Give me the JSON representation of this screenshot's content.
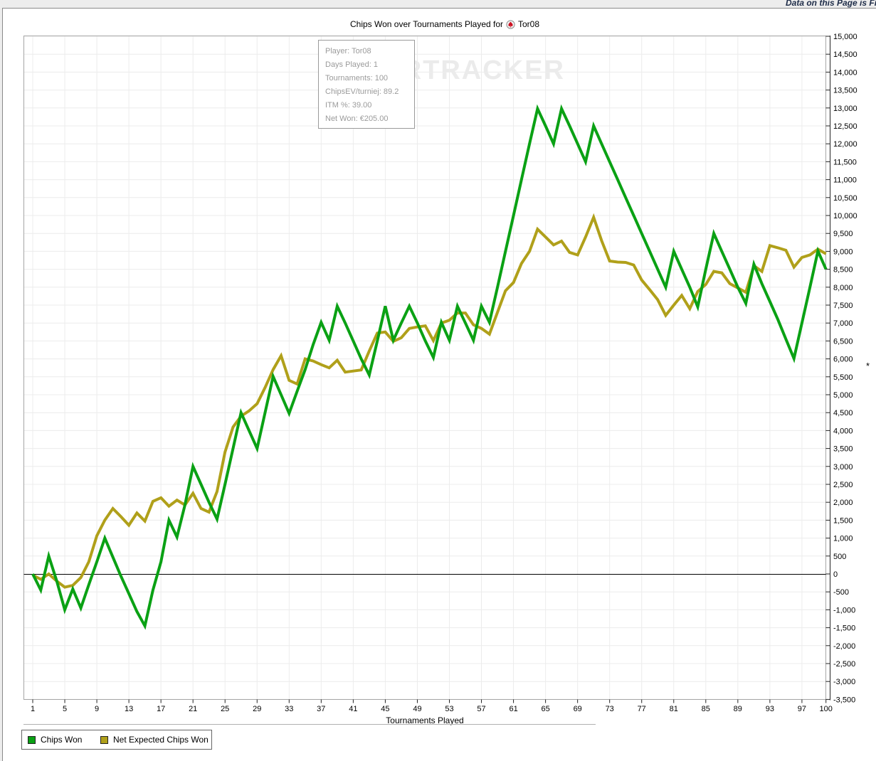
{
  "window": {
    "filtered_notice": "Data on this Page is Filtered"
  },
  "title": {
    "prefix": "Chips Won over Tournaments Played for",
    "player": "Tor08",
    "site_icon": "pokerstars-player-icon"
  },
  "watermark": "POKERTRACKER",
  "tooltip": {
    "lines": [
      "Player: Tor08",
      "Days Played: 1",
      "Tournaments: 100",
      "ChipsEV/turniej: 89.2",
      "ITM %: 39.00",
      "Net Won: €205.00"
    ]
  },
  "axes": {
    "x_label": "Tournaments Played",
    "y_symbol": "*"
  },
  "legend": {
    "items": [
      {
        "label": "Chips Won",
        "color": "#0aa114"
      },
      {
        "label": "Net Expected Chips Won",
        "color": "#b0a01a"
      }
    ]
  },
  "colors": {
    "green_line": "#0aa114",
    "olive_line": "#b0a01a",
    "grid": "#ececec",
    "plot_border": "#a6a6a6",
    "zero_line": "#000000",
    "axis": "#222222"
  },
  "chart_data": {
    "type": "line",
    "title": "Chips Won over Tournaments Played for Tor08",
    "xlabel": "Tournaments Played",
    "ylabel": "*",
    "xlim": [
      1,
      100
    ],
    "ylim": [
      -3500,
      15000
    ],
    "y_tick_step": 500,
    "grid": true,
    "legend_position": "bottom-left",
    "x_ticks": [
      1,
      5,
      9,
      13,
      17,
      21,
      25,
      29,
      33,
      37,
      41,
      45,
      49,
      53,
      57,
      61,
      65,
      69,
      73,
      77,
      81,
      85,
      89,
      93,
      97,
      100
    ],
    "x": [
      1,
      2,
      3,
      4,
      5,
      6,
      7,
      8,
      9,
      10,
      11,
      12,
      13,
      14,
      15,
      16,
      17,
      18,
      19,
      20,
      21,
      22,
      23,
      24,
      25,
      26,
      27,
      28,
      29,
      30,
      31,
      32,
      33,
      34,
      35,
      36,
      37,
      38,
      39,
      40,
      41,
      42,
      43,
      44,
      45,
      46,
      47,
      48,
      49,
      50,
      51,
      52,
      53,
      54,
      55,
      56,
      57,
      58,
      59,
      60,
      61,
      62,
      63,
      64,
      65,
      66,
      67,
      68,
      69,
      70,
      71,
      72,
      73,
      74,
      75,
      76,
      77,
      78,
      79,
      80,
      81,
      82,
      83,
      84,
      85,
      86,
      87,
      88,
      89,
      90,
      91,
      92,
      93,
      94,
      95,
      96,
      97,
      98,
      99,
      100
    ],
    "series": [
      {
        "name": "Chips Won",
        "color": "#0aa114",
        "values": [
          0,
          -450,
          500,
          -200,
          -1000,
          -420,
          -950,
          -300,
          340,
          1000,
          470,
          -60,
          -550,
          -1050,
          -1450,
          -450,
          340,
          1500,
          1030,
          1925,
          3000,
          2500,
          2000,
          1530,
          2500,
          3500,
          4500,
          4000,
          3500,
          4500,
          5510,
          5000,
          4480,
          5100,
          5700,
          6400,
          7020,
          6520,
          7470,
          7000,
          6500,
          6000,
          5550,
          6500,
          7470,
          6520,
          7000,
          7470,
          7000,
          6500,
          6040,
          7020,
          6520,
          7470,
          7000,
          6520,
          7470,
          7020,
          8000,
          9000,
          10000,
          11000,
          12000,
          12980,
          12500,
          12000,
          12980,
          12500,
          12000,
          11500,
          12500,
          12000,
          11500,
          11000,
          10500,
          10000,
          9500,
          9000,
          8500,
          8000,
          9000,
          8500,
          8000,
          7450,
          8500,
          9500,
          9000,
          8500,
          8000,
          7550,
          8640,
          8100,
          7600,
          7100,
          6550,
          6010,
          7000,
          8000,
          9010,
          8500
        ]
      },
      {
        "name": "Net Expected Chips Won",
        "color": "#b0a01a",
        "values": [
          -30,
          -150,
          0,
          -200,
          -370,
          -320,
          -100,
          340,
          1065,
          1500,
          1825,
          1600,
          1360,
          1700,
          1475,
          2025,
          2125,
          1890,
          2060,
          1925,
          2250,
          1825,
          1725,
          2300,
          3400,
          4100,
          4400,
          4550,
          4750,
          5200,
          5700,
          6090,
          5400,
          5300,
          6000,
          5940,
          5840,
          5750,
          5960,
          5630,
          5660,
          5690,
          6220,
          6720,
          6750,
          6490,
          6590,
          6850,
          6890,
          6920,
          6510,
          7000,
          7080,
          7280,
          7280,
          6950,
          6850,
          6690,
          7300,
          7900,
          8130,
          8660,
          9000,
          9620,
          9400,
          9180,
          9285,
          8970,
          8900,
          9400,
          9950,
          9300,
          8730,
          8700,
          8690,
          8620,
          8200,
          7930,
          7650,
          7215,
          7500,
          7770,
          7400,
          7880,
          8075,
          8440,
          8400,
          8100,
          7980,
          7860,
          8600,
          8440,
          9160,
          9100,
          9030,
          8560,
          8830,
          8900,
          9060,
          8930
        ]
      }
    ]
  }
}
